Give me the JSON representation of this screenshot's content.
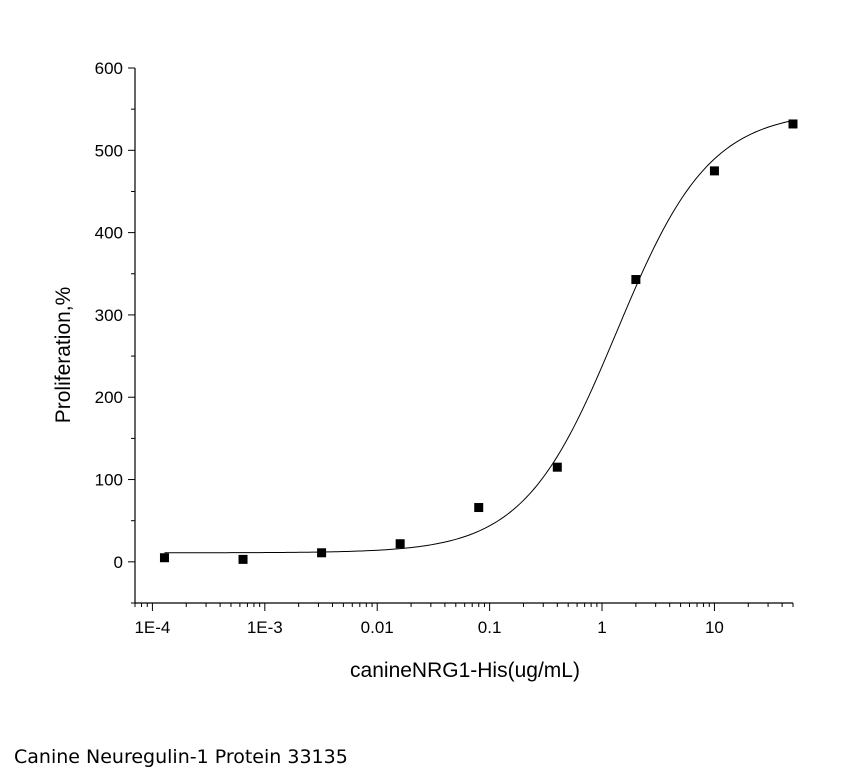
{
  "chart_data": {
    "type": "scatter",
    "xlabel": "canineNRG1-His(ug/mL)",
    "ylabel": "Proliferation,%",
    "xscale": "log",
    "xlim": [
      7e-05,
      50
    ],
    "ylim": [
      -50,
      600
    ],
    "x_tick_labels": [
      "1E-4",
      "1E-3",
      "0.01",
      "0.1",
      "1",
      "10"
    ],
    "y_ticks": [
      0,
      100,
      200,
      300,
      400,
      500,
      600
    ],
    "grid": false,
    "legend": "none",
    "series": [
      {
        "points": [
          {
            "x": 0.000128,
            "y": 5
          },
          {
            "x": 0.00064,
            "y": 3
          },
          {
            "x": 0.0032,
            "y": 11
          },
          {
            "x": 0.016,
            "y": 22
          },
          {
            "x": 0.08,
            "y": 66
          },
          {
            "x": 0.4,
            "y": 115
          },
          {
            "x": 2,
            "y": 343
          },
          {
            "x": 10,
            "y": 475
          },
          {
            "x": 50,
            "y": 532
          }
        ],
        "marker": "square",
        "color": "#000000"
      }
    ],
    "fit_curve": {
      "model": "4-parameter logistic",
      "bottom": 11,
      "top": 548,
      "ec50": 1.35,
      "hill": 1.05,
      "color": "#000000"
    }
  },
  "caption": "Canine Neuregulin-1 Protein 33135"
}
